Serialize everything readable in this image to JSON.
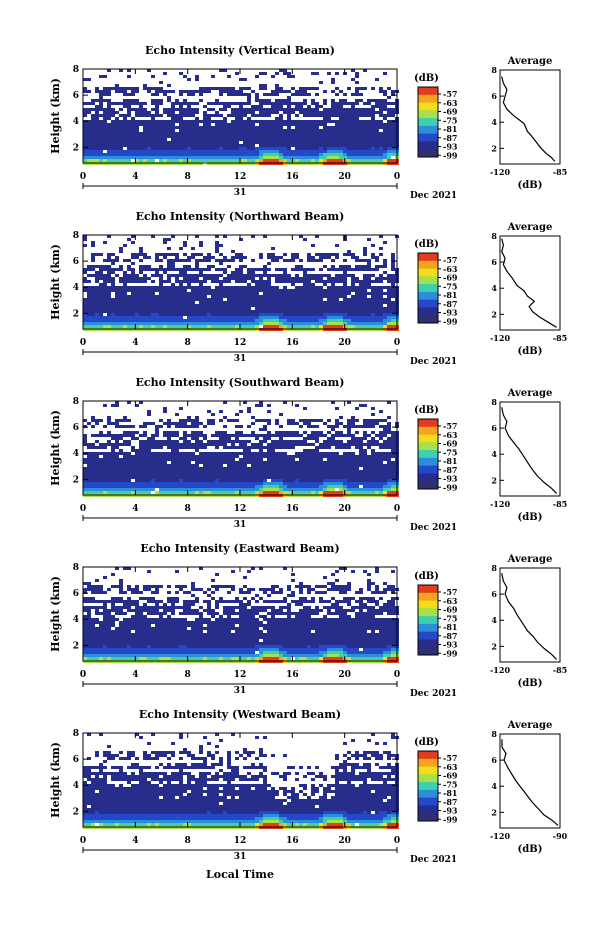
{
  "figure": {
    "x_axis_label": "Local Time",
    "date_label": "Dec 2021",
    "day_label": "31",
    "colorbar_unit": "(dB)",
    "avg_title": "Average",
    "avg_xlabel": "(dB)"
  },
  "chart_data": [
    {
      "type": "heatmap",
      "title": "Echo Intensity (Vertical Beam)",
      "ylabel": "Height (km)",
      "x_ticks": [
        "0",
        "4",
        "8",
        "12",
        "16",
        "20",
        "0"
      ],
      "y_ticks": [
        "2",
        "4",
        "6",
        "8"
      ],
      "xlim": [
        0,
        24
      ],
      "ylim": [
        0.8,
        8
      ],
      "colorbar_ticks": [
        "-57",
        "-63",
        "-69",
        "-75",
        "-81",
        "-87",
        "-93",
        "-99"
      ],
      "colorbar_colors": [
        "#e23b1e",
        "#f5a21e",
        "#f2dc1d",
        "#a6e04a",
        "#3ccfb0",
        "#2a8fd8",
        "#2448c8",
        "#262d8a",
        "#2e2f6e"
      ],
      "profile": {
        "title": "Average",
        "xlabel": "(dB)",
        "x_ticks": [
          "-120",
          "-85"
        ],
        "y_ticks": [
          "2",
          "4",
          "6",
          "8"
        ],
        "xlim": [
          -120,
          -85
        ],
        "ylim": [
          0.8,
          8
        ],
        "x": [
          -88,
          -90,
          -93,
          -96,
          -99,
          -102,
          -104,
          -105,
          -106,
          -108,
          -112,
          -116,
          -118,
          -117,
          -116,
          -118,
          -119
        ],
        "y": [
          1.0,
          1.3,
          1.6,
          2.0,
          2.5,
          3.0,
          3.3,
          3.6,
          3.9,
          4.1,
          4.5,
          5.0,
          5.5,
          6.0,
          6.5,
          7.0,
          7.5
        ]
      }
    },
    {
      "type": "heatmap",
      "title": "Echo Intensity (Northward Beam)",
      "ylabel": "Height (km)",
      "x_ticks": [
        "0",
        "4",
        "8",
        "12",
        "16",
        "20",
        "0"
      ],
      "y_ticks": [
        "2",
        "4",
        "6",
        "8"
      ],
      "xlim": [
        0,
        24
      ],
      "ylim": [
        0.8,
        8
      ],
      "colorbar_ticks": [
        "-57",
        "-63",
        "-69",
        "-75",
        "-81",
        "-87",
        "-93",
        "-99"
      ],
      "colorbar_colors": [
        "#e23b1e",
        "#f5a21e",
        "#f2dc1d",
        "#a6e04a",
        "#3ccfb0",
        "#2a8fd8",
        "#2448c8",
        "#262d8a",
        "#2e2f6e"
      ],
      "profile": {
        "title": "Average",
        "xlabel": "(dB)",
        "x_ticks": [
          "-120",
          "-85"
        ],
        "y_ticks": [
          "2",
          "4",
          "6",
          "8"
        ],
        "xlim": [
          -120,
          -85
        ],
        "ylim": [
          0.8,
          8
        ],
        "x": [
          -87,
          -92,
          -97,
          -101,
          -103,
          -100,
          -104,
          -106,
          -110,
          -113,
          -116,
          -118,
          -117,
          -119,
          -118,
          -119
        ],
        "y": [
          1.0,
          1.4,
          1.8,
          2.2,
          2.6,
          3.0,
          3.4,
          3.8,
          4.2,
          4.8,
          5.3,
          5.8,
          6.3,
          6.8,
          7.3,
          7.8
        ]
      }
    },
    {
      "type": "heatmap",
      "title": "Echo Intensity (Southward Beam)",
      "ylabel": "Height (km)",
      "x_ticks": [
        "0",
        "4",
        "8",
        "12",
        "16",
        "20",
        "0"
      ],
      "y_ticks": [
        "2",
        "4",
        "6",
        "8"
      ],
      "xlim": [
        0,
        24
      ],
      "ylim": [
        0.8,
        8
      ],
      "colorbar_ticks": [
        "-57",
        "-63",
        "-69",
        "-75",
        "-81",
        "-87",
        "-93",
        "-99"
      ],
      "colorbar_colors": [
        "#e23b1e",
        "#f5a21e",
        "#f2dc1d",
        "#a6e04a",
        "#3ccfb0",
        "#2a8fd8",
        "#2448c8",
        "#262d8a",
        "#2e2f6e"
      ],
      "profile": {
        "title": "Average",
        "xlabel": "(dB)",
        "x_ticks": [
          "-120",
          "-85"
        ],
        "y_ticks": [
          "2",
          "4",
          "6",
          "8"
        ],
        "xlim": [
          -120,
          -85
        ],
        "ylim": [
          0.8,
          8
        ],
        "x": [
          -87,
          -90,
          -94,
          -98,
          -101,
          -103,
          -105,
          -107,
          -109,
          -112,
          -115,
          -117,
          -116,
          -118,
          -119
        ],
        "y": [
          1.0,
          1.4,
          1.8,
          2.3,
          2.8,
          3.2,
          3.6,
          4.0,
          4.4,
          4.9,
          5.4,
          6.0,
          6.5,
          7.0,
          7.6
        ]
      }
    },
    {
      "type": "heatmap",
      "title": "Echo Intensity (Eastward Beam)",
      "ylabel": "Height (km)",
      "x_ticks": [
        "0",
        "4",
        "8",
        "12",
        "16",
        "20",
        "0"
      ],
      "y_ticks": [
        "2",
        "4",
        "6",
        "8"
      ],
      "xlim": [
        0,
        24
      ],
      "ylim": [
        0.8,
        8
      ],
      "colorbar_ticks": [
        "-57",
        "-63",
        "-69",
        "-75",
        "-81",
        "-87",
        "-93",
        "-99"
      ],
      "colorbar_colors": [
        "#e23b1e",
        "#f5a21e",
        "#f2dc1d",
        "#a6e04a",
        "#3ccfb0",
        "#2a8fd8",
        "#2448c8",
        "#262d8a",
        "#2e2f6e"
      ],
      "profile": {
        "title": "Average",
        "xlabel": "(dB)",
        "x_ticks": [
          "-120",
          "-85"
        ],
        "y_ticks": [
          "2",
          "4",
          "6",
          "8"
        ],
        "xlim": [
          -120,
          -85
        ],
        "ylim": [
          0.8,
          8
        ],
        "x": [
          -87,
          -90,
          -94,
          -98,
          -101,
          -104,
          -106,
          -108,
          -110,
          -112,
          -115,
          -117,
          -116,
          -118,
          -119
        ],
        "y": [
          1.0,
          1.4,
          1.8,
          2.3,
          2.8,
          3.2,
          3.6,
          4.0,
          4.4,
          4.9,
          5.4,
          6.0,
          6.5,
          7.0,
          7.6
        ]
      }
    },
    {
      "type": "heatmap",
      "title": "Echo Intensity (Westward Beam)",
      "ylabel": "Height (km)",
      "x_ticks": [
        "0",
        "4",
        "8",
        "12",
        "16",
        "20",
        "0"
      ],
      "y_ticks": [
        "2",
        "4",
        "6",
        "8"
      ],
      "xlim": [
        0,
        24
      ],
      "ylim": [
        0.8,
        8
      ],
      "colorbar_ticks": [
        "-57",
        "-63",
        "-69",
        "-75",
        "-81",
        "-87",
        "-93",
        "-99"
      ],
      "colorbar_colors": [
        "#e23b1e",
        "#f5a21e",
        "#f2dc1d",
        "#a6e04a",
        "#3ccfb0",
        "#2a8fd8",
        "#2448c8",
        "#262d8a",
        "#2e2f6e"
      ],
      "profile": {
        "title": "Average",
        "xlabel": "(dB)",
        "x_ticks": [
          "-120",
          "-90"
        ],
        "y_ticks": [
          "2",
          "4",
          "6",
          "8"
        ],
        "xlim": [
          -120,
          -90
        ],
        "ylim": [
          0.8,
          8
        ],
        "x": [
          -91,
          -94,
          -98,
          -101,
          -104,
          -106,
          -108,
          -110,
          -112,
          -114,
          -116,
          -118,
          -117,
          -119,
          -119
        ],
        "y": [
          1.0,
          1.4,
          1.8,
          2.3,
          2.8,
          3.2,
          3.6,
          4.0,
          4.4,
          4.9,
          5.4,
          6.0,
          6.5,
          7.0,
          7.6
        ]
      }
    }
  ]
}
